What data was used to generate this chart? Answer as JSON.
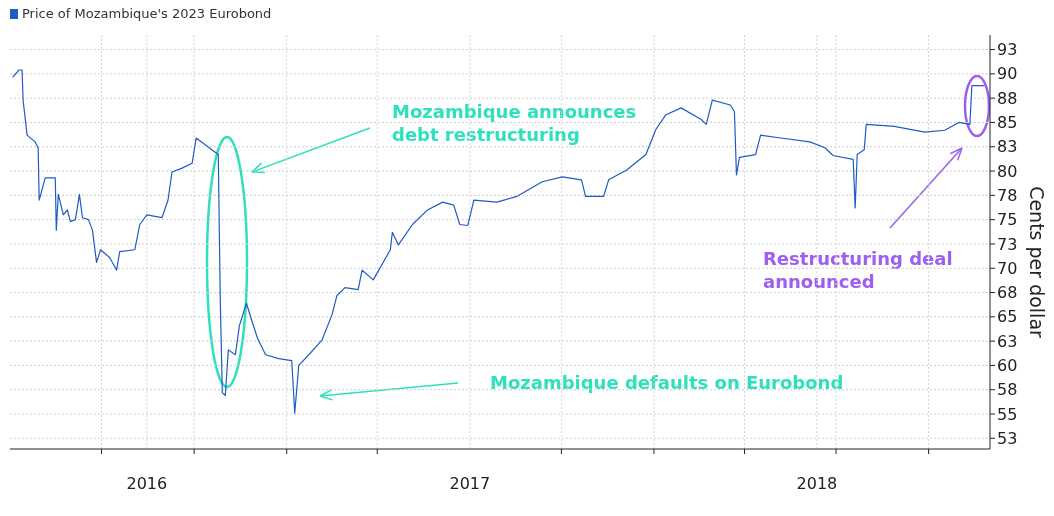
{
  "chart_data": {
    "type": "line",
    "ylabel": "Cents per dollar",
    "legend": "top left",
    "grid": true,
    "line_style": "solid",
    "marker": "none",
    "xlim": [
      "2016-04-01",
      "2018-12-01"
    ],
    "ylim": [
      51.4,
      94
    ],
    "xticks": [
      {
        "value": "2016-07-01",
        "label": null
      },
      {
        "value": "2016-08-15",
        "label": "2016"
      },
      {
        "value": "2016-10-01",
        "label": null
      },
      {
        "value": "2017-01-01",
        "label": null
      },
      {
        "value": "2017-04-01",
        "label": null
      },
      {
        "value": "2017-07-02",
        "label": "2017"
      },
      {
        "value": "2017-10-01",
        "label": null
      },
      {
        "value": "2018-01-01",
        "label": null
      },
      {
        "value": "2018-04-01",
        "label": null
      },
      {
        "value": "2018-06-12",
        "label": "2018"
      },
      {
        "value": "2018-07-01",
        "label": null
      },
      {
        "value": "2018-10-01",
        "label": null
      }
    ],
    "yticks": [
      {
        "value": 52.5,
        "label": "53"
      },
      55,
      {
        "value": 57.5,
        "label": "58"
      },
      60,
      {
        "value": 62.5,
        "label": "63"
      },
      65,
      {
        "value": 67.5,
        "label": "68"
      },
      70,
      {
        "value": 72.5,
        "label": "73"
      },
      75,
      {
        "value": 77.5,
        "label": "78"
      },
      80,
      {
        "value": 82.5,
        "label": "83"
      },
      85,
      {
        "value": 87.5,
        "label": "88"
      },
      90,
      {
        "value": 92.5,
        "label": "93"
      }
    ],
    "series": [
      {
        "name": "Price of Mozambique's 2023 Eurobond",
        "color": "#1f5bc4",
        "x": [
          "2016-04-04",
          "2016-04-10",
          "2016-04-13",
          "2016-04-14",
          "2016-04-18",
          "2016-04-26",
          "2016-04-29",
          "2016-04-30",
          "2016-05-06",
          "2016-05-16",
          "2016-05-17",
          "2016-05-19",
          "2016-05-24",
          "2016-05-28",
          "2016-05-31",
          "2016-06-05",
          "2016-06-09",
          "2016-06-12",
          "2016-06-18",
          "2016-06-22",
          "2016-06-26",
          "2016-06-30",
          "2016-07-09",
          "2016-07-16",
          "2016-07-19",
          "2016-08-03",
          "2016-08-08",
          "2016-08-15",
          "2016-08-30",
          "2016-09-05",
          "2016-09-09",
          "2016-09-19",
          "2016-09-29",
          "2016-10-03",
          "2016-10-16",
          "2016-10-25",
          "2016-10-27",
          "2016-10-29",
          "2016-11-01",
          "2016-11-04",
          "2016-11-11",
          "2016-11-15",
          "2016-11-22",
          "2016-11-27",
          "2016-12-03",
          "2016-12-11",
          "2016-12-24",
          "2017-01-06",
          "2017-01-09",
          "2017-01-13",
          "2017-01-23",
          "2017-02-05",
          "2017-02-15",
          "2017-02-20",
          "2017-02-28",
          "2017-03-13",
          "2017-03-17",
          "2017-03-28",
          "2017-04-14",
          "2017-04-16",
          "2017-04-22",
          "2017-05-06",
          "2017-05-21",
          "2017-06-05",
          "2017-06-16",
          "2017-06-22",
          "2017-06-30",
          "2017-07-06",
          "2017-07-29",
          "2017-08-18",
          "2017-09-12",
          "2017-10-02",
          "2017-10-21",
          "2017-10-25",
          "2017-11-12",
          "2017-11-17",
          "2017-12-05",
          "2017-12-24",
          "2018-01-03",
          "2018-01-13",
          "2018-01-28",
          "2018-02-17",
          "2018-02-22",
          "2018-02-28",
          "2018-03-18",
          "2018-03-22",
          "2018-03-24",
          "2018-03-27",
          "2018-04-12",
          "2018-04-17",
          "2018-05-07",
          "2018-06-05",
          "2018-06-20",
          "2018-06-28",
          "2018-07-18",
          "2018-07-20",
          "2018-07-22",
          "2018-07-29",
          "2018-07-31",
          "2018-08-28",
          "2018-09-27",
          "2018-10-17",
          "2018-10-31",
          "2018-11-11",
          "2018-11-13",
          "2018-11-25"
        ],
        "values": [
          89.7,
          90.4,
          90.4,
          87.3,
          83.7,
          83.0,
          82.4,
          77.0,
          79.3,
          79.3,
          73.9,
          77.6,
          75.5,
          76.0,
          74.8,
          75.0,
          77.6,
          75.2,
          75.0,
          73.9,
          70.6,
          71.9,
          71.1,
          69.8,
          71.7,
          71.9,
          74.5,
          75.5,
          75.2,
          77.0,
          79.9,
          80.3,
          80.8,
          83.4,
          82.4,
          81.7,
          66.7,
          57.2,
          56.9,
          61.6,
          61.1,
          64.1,
          66.4,
          64.7,
          62.8,
          61.1,
          60.7,
          60.5,
          55.1,
          60.0,
          61.1,
          62.6,
          65.2,
          67.2,
          68.0,
          67.8,
          69.8,
          68.8,
          71.9,
          73.7,
          72.4,
          74.5,
          76.0,
          76.8,
          76.5,
          74.5,
          74.4,
          77.0,
          76.8,
          77.4,
          78.9,
          79.4,
          79.1,
          77.4,
          77.4,
          79.1,
          80.1,
          81.7,
          84.3,
          85.8,
          86.5,
          85.3,
          84.8,
          87.3,
          86.8,
          86.1,
          79.6,
          81.4,
          81.7,
          83.7,
          83.4,
          83.0,
          82.4,
          81.6,
          81.2,
          76.2,
          81.7,
          82.2,
          84.8,
          84.6,
          84.0,
          84.2,
          85.0,
          84.8,
          88.8,
          88.8
        ]
      }
    ],
    "annotations": [
      "Mozambique announces debt restructuring",
      "Mozambique defaults on Eurobond",
      "Restructuring deal announced"
    ]
  }
}
